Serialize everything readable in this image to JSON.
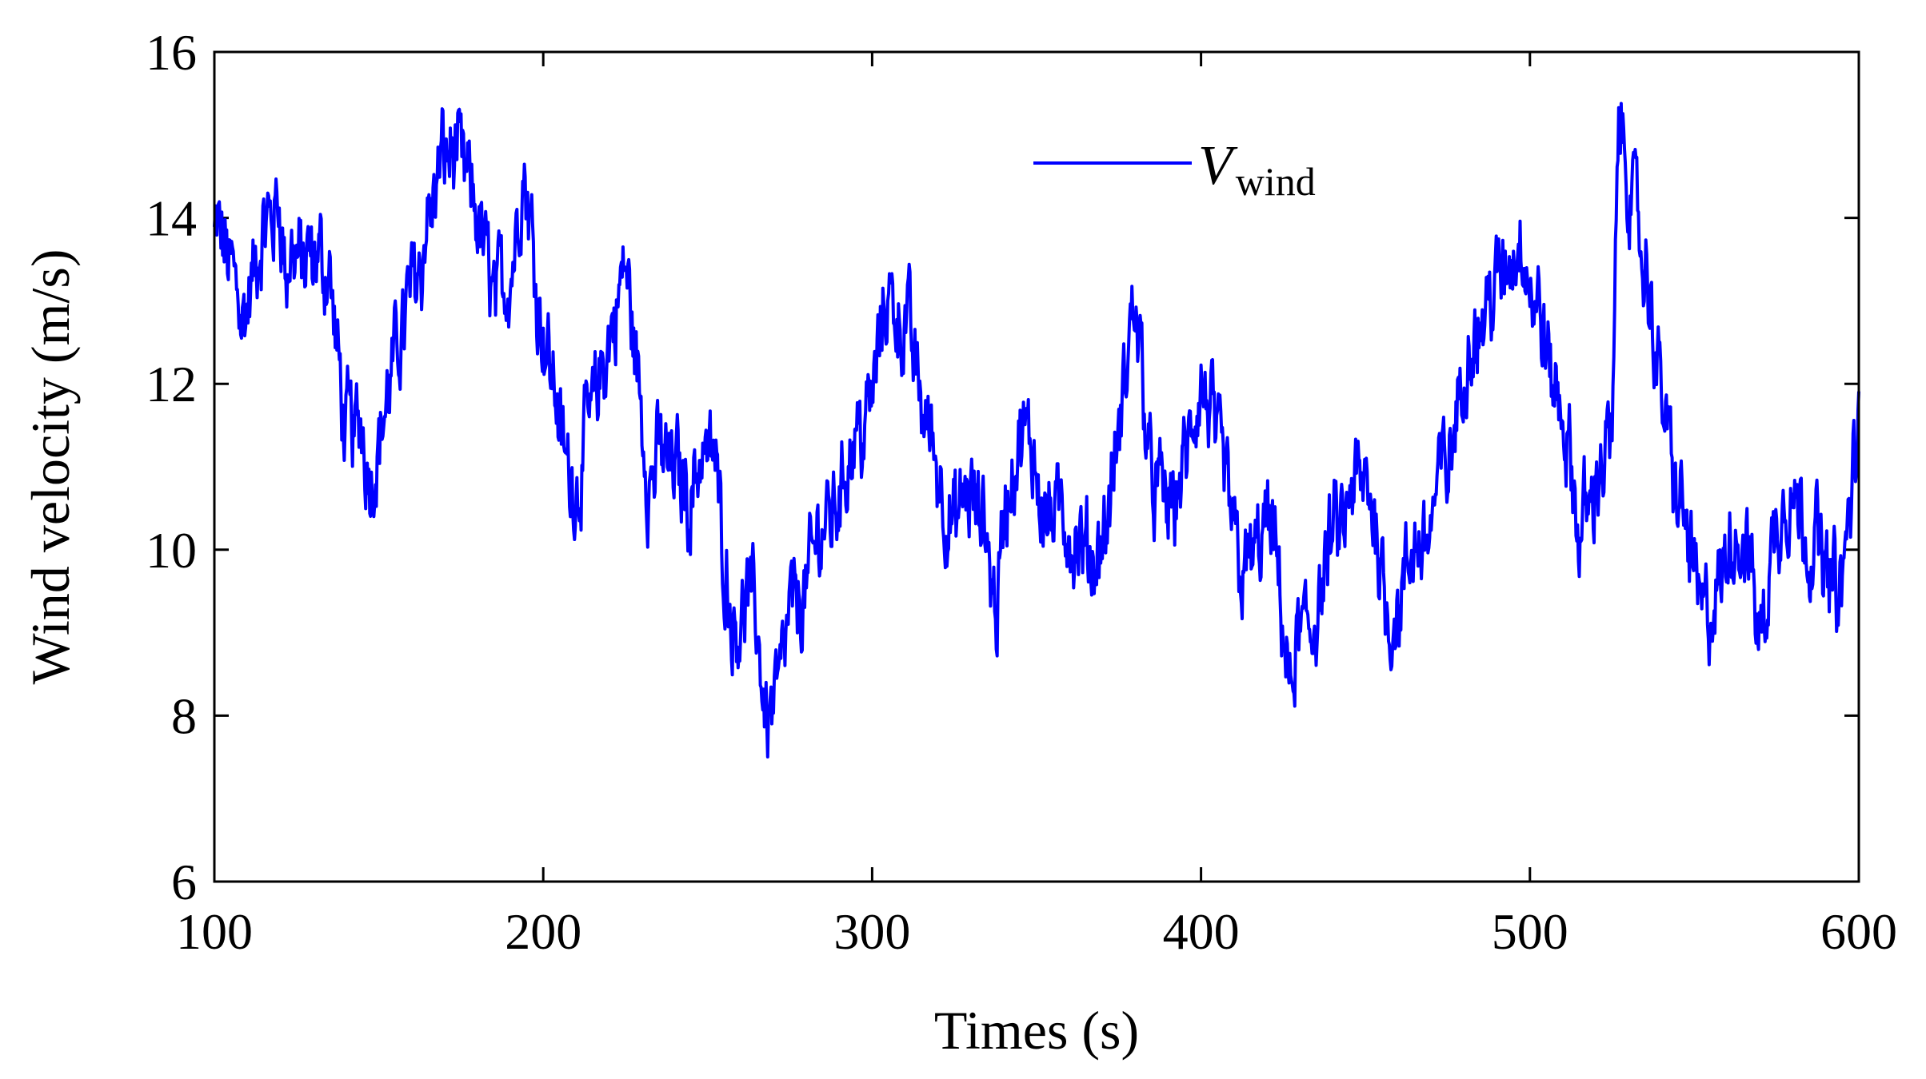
{
  "chart_data": {
    "type": "line",
    "xlabel": "Times (s)",
    "ylabel": "Wind velocity (m/s)",
    "xlim": [
      100,
      600
    ],
    "ylim": [
      6,
      16
    ],
    "xticks": [
      100,
      200,
      300,
      400,
      500,
      600
    ],
    "yticks": [
      6,
      8,
      10,
      12,
      14,
      16
    ],
    "grid": false,
    "legend_position": "top-center",
    "series": [
      {
        "name": "V",
        "name_subscript": "wind",
        "color": "#0000ff",
        "x": [
          100,
          105,
          110,
          115,
          120,
          122,
          125,
          130,
          135,
          138,
          140,
          145,
          148,
          150,
          155,
          160,
          165,
          170,
          172,
          175,
          180,
          185,
          190,
          194,
          200,
          203,
          207,
          210,
          215,
          220,
          225,
          230,
          232,
          235,
          240,
          245,
          248,
          252,
          255,
          258,
          262,
          265,
          268,
          270,
          275,
          280,
          285,
          290,
          295,
          300,
          303,
          305,
          310,
          315,
          318,
          323,
          325,
          330,
          335,
          338,
          340,
          345,
          350,
          355,
          360,
          365,
          368,
          372,
          375,
          378,
          380,
          385,
          390,
          395,
          400,
          404,
          408,
          412,
          416,
          420,
          423,
          427,
          430,
          435,
          440,
          445,
          450,
          455,
          458,
          462,
          467,
          470,
          475,
          480,
          485,
          490,
          495,
          498,
          502,
          507,
          510,
          515,
          520,
          525,
          527,
          530,
          535,
          540,
          545,
          550,
          553,
          558,
          562,
          566,
          570,
          575,
          580,
          585,
          590,
          595,
          600
        ],
        "y": [
          13.8,
          13.4,
          13.0,
          13.6,
          14.2,
          13.3,
          13.6,
          13.2,
          13.4,
          12.0,
          11.3,
          11.6,
          11.0,
          11.5,
          12.2,
          13.3,
          14.1,
          14.7,
          14.9,
          14.5,
          13.9,
          13.1,
          13.4,
          14.6,
          12.8,
          12.2,
          11.0,
          10.8,
          11.7,
          12.4,
          13.4,
          11.6,
          10.7,
          11.2,
          11.0,
          10.7,
          11.3,
          11.2,
          10.0,
          9.2,
          9.5,
          9.0,
          8.0,
          8.3,
          9.2,
          9.5,
          10.3,
          10.8,
          11.5,
          11.8,
          12.7,
          13.1,
          12.8,
          11.8,
          11.4,
          10.5,
          10.2,
          10.6,
          10.0,
          9.3,
          10.5,
          11.2,
          11.0,
          10.5,
          10.2,
          9.6,
          9.8,
          10.5,
          11.2,
          12.3,
          13.0,
          11.0,
          10.4,
          11.0,
          11.7,
          11.3,
          10.6,
          10.0,
          9.9,
          10.3,
          9.7,
          8.2,
          8.8,
          9.3,
          10.0,
          10.4,
          10.7,
          9.9,
          9.3,
          9.5,
          10.0,
          10.5,
          11.1,
          12.0,
          12.9,
          13.2,
          13.4,
          13.8,
          12.8,
          12.0,
          11.6,
          10.0,
          10.9,
          11.3,
          15.2,
          14.5,
          13.3,
          11.8,
          10.7,
          9.8,
          9.2,
          9.3,
          10.2,
          10.0,
          9.0,
          10.3,
          10.8,
          10.3,
          9.8,
          9.6,
          11.5
        ]
      }
    ]
  }
}
